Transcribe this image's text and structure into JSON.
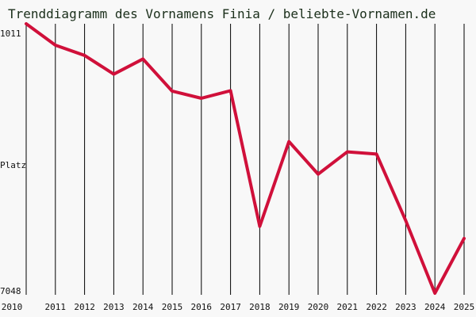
{
  "chart_data": {
    "type": "line",
    "title": "Trenddiagramm des Vornamens Finia / beliebte-Vornamen.de",
    "ylabel": "Platz",
    "y_axis_inverted": true,
    "ylim": [
      1011,
      7048
    ],
    "y_tick_labels": [
      "1011",
      "Platz",
      "7048"
    ],
    "grid": "vertical",
    "x": [
      "2010",
      "2011",
      "2012",
      "2013",
      "2014",
      "2015",
      "2016",
      "2017",
      "2018",
      "2019",
      "2020",
      "2021",
      "2022",
      "2023",
      "2024",
      "2025"
    ],
    "series": [
      {
        "values": [
          1011,
          1490,
          1720,
          2140,
          1800,
          2520,
          2680,
          2510,
          5550,
          3650,
          4380,
          3880,
          3930,
          5420,
          7048,
          5820
        ],
        "color": "#d0103a"
      }
    ]
  },
  "colors": {
    "background": "#f8f8f8",
    "series": "#d0103a",
    "grid": "#000000",
    "title": "#1a2e1a"
  }
}
